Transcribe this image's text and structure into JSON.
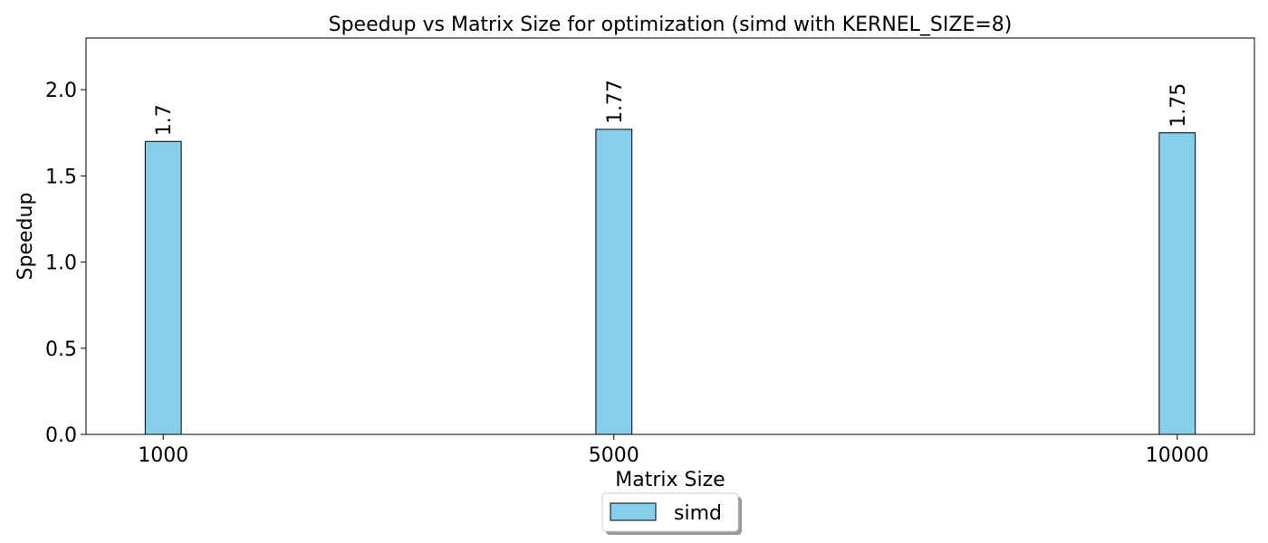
{
  "chart_data": {
    "type": "bar",
    "title": "Speedup vs Matrix Size for optimization (simd with KERNEL_SIZE=8)",
    "xlabel": "Matrix Size",
    "ylabel": "Speedup",
    "x": [
      1000,
      5000,
      10000
    ],
    "x_tick_labels": [
      "1000",
      "5000",
      "10000"
    ],
    "xlim": [
      315,
      10685
    ],
    "ylim": [
      0,
      2.3
    ],
    "y_ticks": [
      0.0,
      0.5,
      1.0,
      1.5,
      2.0
    ],
    "y_tick_labels": [
      "0.0",
      "0.5",
      "1.0",
      "1.5",
      "2.0"
    ],
    "bar_width": 320,
    "grid": false,
    "legend_position": "below-center",
    "series": [
      {
        "name": "simd",
        "color": "#87ceeb",
        "edge_color": "#000000",
        "values": [
          1.7,
          1.77,
          1.75
        ],
        "value_labels": [
          "1.7",
          "1.77",
          "1.75"
        ]
      }
    ]
  }
}
